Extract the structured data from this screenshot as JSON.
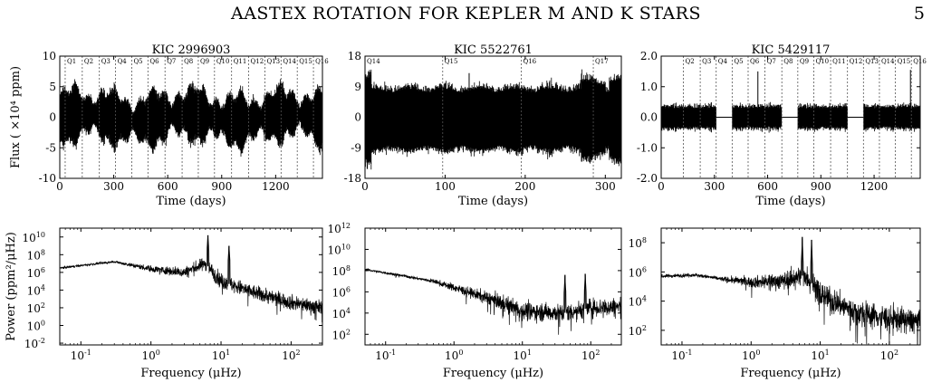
{
  "header": {
    "title": "AASTEX ROTATION FOR KEPLER M AND K STARS",
    "page_number": "5"
  },
  "chart_data": [
    {
      "type": "line",
      "title": "KIC 2996903",
      "xlabel": "Time (days)",
      "ylabel": "Flux ( ×10⁴ ppm)",
      "xlim": [
        0,
        1460
      ],
      "ylim": [
        -10,
        10
      ],
      "xticks": [
        0,
        300,
        600,
        900,
        1200
      ],
      "yticks": [
        -10,
        -5,
        0,
        5,
        10
      ],
      "grid": false,
      "quarter_labels": [
        "Q1",
        "Q2",
        "Q3",
        "Q4",
        "Q5",
        "Q6",
        "Q7",
        "Q8",
        "Q9",
        "Q10",
        "Q11",
        "Q12",
        "Q13",
        "Q14",
        "Q15",
        "Q16"
      ],
      "quarter_boundaries": [
        30,
        125,
        220,
        310,
        400,
        490,
        585,
        680,
        770,
        860,
        955,
        1050,
        1140,
        1230,
        1320,
        1410
      ],
      "gaps": [],
      "envelope_amplitude": 4
    },
    {
      "type": "line",
      "title": "KIC 5522761",
      "xlabel": "Time (days)",
      "ylabel": "",
      "xlim": [
        0,
        320
      ],
      "ylim": [
        -18,
        18
      ],
      "xticks": [
        0,
        100,
        200,
        300
      ],
      "yticks": [
        -18,
        -9,
        0,
        9,
        18
      ],
      "grid": false,
      "quarter_labels": [
        "Q14",
        "Q15",
        "Q16",
        "Q17"
      ],
      "quarter_boundaries": [
        0,
        97,
        195,
        285
      ],
      "gaps": [],
      "envelope_amplitude": 9
    },
    {
      "type": "line",
      "title": "KIC 5429117",
      "xlabel": "Time (days)",
      "ylabel": "",
      "xlim": [
        0,
        1460
      ],
      "ylim": [
        -2.0,
        2.0
      ],
      "xticks": [
        0,
        300,
        600,
        900,
        1200
      ],
      "yticks": [
        "-2.0",
        "-1.0",
        "0.0",
        "1.0",
        "2.0"
      ],
      "grid": false,
      "quarter_labels": [
        "Q2",
        "Q3",
        "Q4",
        "Q5",
        "Q6",
        "Q7",
        "Q8",
        "Q9",
        "Q10",
        "Q11",
        "Q12",
        "Q13",
        "Q14",
        "Q15",
        "Q16"
      ],
      "quarter_boundaries": [
        125,
        220,
        310,
        400,
        490,
        585,
        680,
        770,
        860,
        955,
        1050,
        1140,
        1230,
        1320,
        1410
      ],
      "gaps": [
        [
          310,
          400
        ],
        [
          680,
          770
        ],
        [
          1050,
          1140
        ]
      ],
      "envelope_amplitude": 0.4
    },
    {
      "type": "line",
      "title": "",
      "xlabel": "Frequency (μHz)",
      "ylabel": "Power (ppm²/μHz)",
      "xscale": "log",
      "yscale": "log",
      "xlim": [
        0.05,
        280
      ],
      "ylim_exponents": [
        -2.2,
        11
      ],
      "xticks": [
        {
          "v": 0.1,
          "base": "10",
          "exp": "-1"
        },
        {
          "v": 1,
          "base": "10",
          "exp": "0"
        },
        {
          "v": 10,
          "base": "10",
          "exp": "1"
        },
        {
          "v": 100,
          "base": "10",
          "exp": "2"
        }
      ],
      "yticks": [
        {
          "e": -2,
          "base": "10",
          "exp": "-2"
        },
        {
          "e": 0,
          "base": "10",
          "exp": "0"
        },
        {
          "e": 2,
          "base": "10",
          "exp": "2"
        },
        {
          "e": 4,
          "base": "10",
          "exp": "4"
        },
        {
          "e": 6,
          "base": "10",
          "exp": "6"
        },
        {
          "e": 8,
          "base": "10",
          "exp": "8"
        },
        {
          "e": 10,
          "base": "10",
          "exp": "10"
        }
      ],
      "grid": false,
      "spectrum_shape": [
        [
          0.05,
          6.5
        ],
        [
          0.3,
          7.2
        ],
        [
          1,
          6.4
        ],
        [
          3,
          6.0
        ],
        [
          6,
          7.0
        ],
        [
          10,
          5.0
        ],
        [
          30,
          3.7
        ],
        [
          100,
          2.6
        ],
        [
          280,
          2.0
        ]
      ],
      "peaks": [
        {
          "f": 6.5,
          "log_power": 10.2
        },
        {
          "f": 13,
          "log_power": 9.0
        }
      ]
    },
    {
      "type": "line",
      "title": "",
      "xlabel": "Frequency (μHz)",
      "ylabel": "",
      "xscale": "log",
      "yscale": "log",
      "xlim": [
        0.05,
        280
      ],
      "ylim_exponents": [
        1,
        12
      ],
      "xticks": [
        {
          "v": 0.1,
          "base": "10",
          "exp": "-1"
        },
        {
          "v": 1,
          "base": "10",
          "exp": "0"
        },
        {
          "v": 10,
          "base": "10",
          "exp": "1"
        },
        {
          "v": 100,
          "base": "10",
          "exp": "2"
        }
      ],
      "yticks": [
        {
          "e": 2,
          "base": "10",
          "exp": "2"
        },
        {
          "e": 4,
          "base": "10",
          "exp": "4"
        },
        {
          "e": 6,
          "base": "10",
          "exp": "6"
        },
        {
          "e": 8,
          "base": "10",
          "exp": "8"
        },
        {
          "e": 10,
          "base": "10",
          "exp": "10"
        },
        {
          "e": 12,
          "base": "10",
          "exp": "12"
        }
      ],
      "grid": false,
      "spectrum_shape": [
        [
          0.05,
          8.1
        ],
        [
          0.15,
          7.6
        ],
        [
          0.5,
          7.0
        ],
        [
          1,
          6.4
        ],
        [
          5,
          5.0
        ],
        [
          10,
          4.2
        ],
        [
          40,
          4.0
        ],
        [
          100,
          4.5
        ],
        [
          280,
          4.6
        ]
      ],
      "peaks": [
        {
          "f": 42,
          "log_power": 7.6
        },
        {
          "f": 83,
          "log_power": 7.7
        }
      ]
    },
    {
      "type": "line",
      "title": "",
      "xlabel": "Frequency (μHz)",
      "ylabel": "",
      "xscale": "log",
      "yscale": "log",
      "xlim": [
        0.05,
        280
      ],
      "ylim_exponents": [
        1,
        9
      ],
      "xticks": [
        {
          "v": 0.1,
          "base": "10",
          "exp": "-1"
        },
        {
          "v": 1,
          "base": "10",
          "exp": "0"
        },
        {
          "v": 10,
          "base": "10",
          "exp": "1"
        },
        {
          "v": 100,
          "base": "10",
          "exp": "2"
        }
      ],
      "yticks": [
        {
          "e": 2,
          "base": "10",
          "exp": "2"
        },
        {
          "e": 4,
          "base": "10",
          "exp": "4"
        },
        {
          "e": 6,
          "base": "10",
          "exp": "6"
        },
        {
          "e": 8,
          "base": "10",
          "exp": "8"
        }
      ],
      "grid": false,
      "spectrum_shape": [
        [
          0.05,
          5.7
        ],
        [
          0.15,
          5.8
        ],
        [
          0.4,
          5.5
        ],
        [
          1,
          5.3
        ],
        [
          3,
          5.4
        ],
        [
          6,
          5.8
        ],
        [
          10,
          4.5
        ],
        [
          30,
          3.3
        ],
        [
          100,
          2.8
        ],
        [
          280,
          2.6
        ]
      ],
      "peaks": [
        {
          "f": 5.5,
          "log_power": 8.4
        },
        {
          "f": 7.5,
          "log_power": 8.2
        }
      ]
    }
  ]
}
